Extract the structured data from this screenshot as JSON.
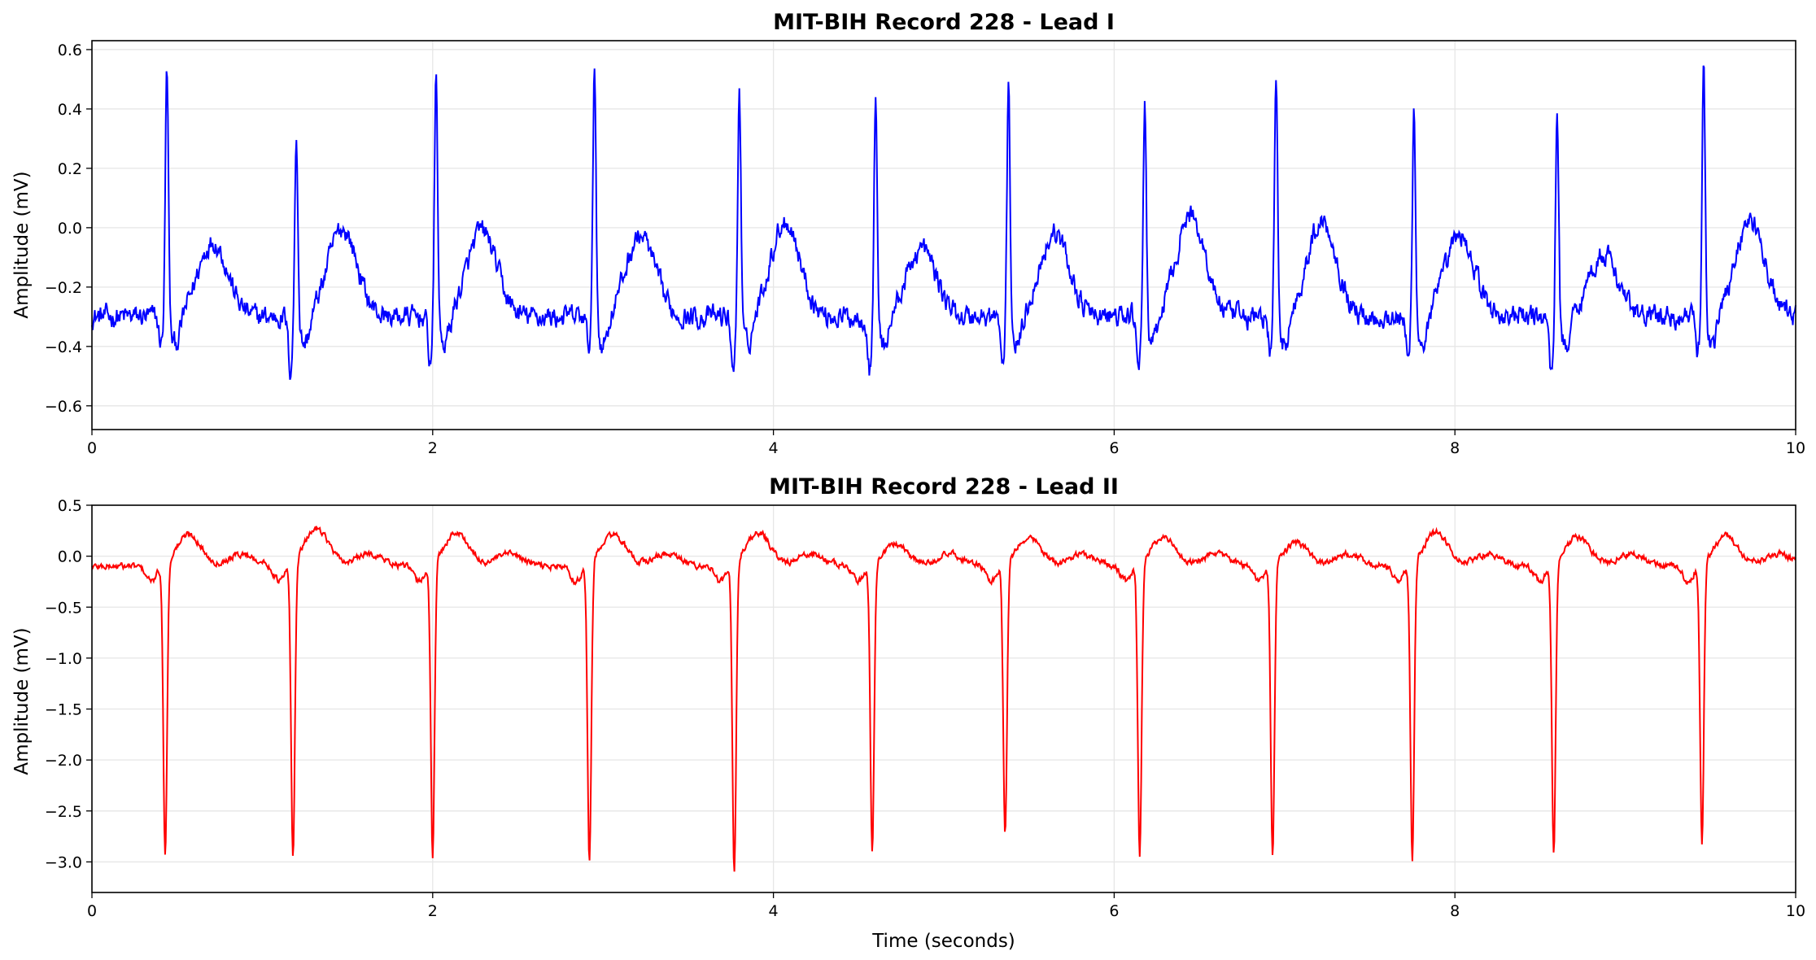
{
  "chart_data": [
    {
      "type": "line",
      "title": "MIT-BIH Record 228 - Lead I",
      "xlabel": "",
      "ylabel": "Amplitude (mV)",
      "xlim": [
        0,
        10
      ],
      "ylim": [
        -0.68,
        0.63
      ],
      "xticks": [
        0,
        2,
        4,
        6,
        8,
        10
      ],
      "xtick_labels": [
        "0",
        "2",
        "4",
        "6",
        "8",
        "10"
      ],
      "yticks": [
        -0.6,
        -0.4,
        -0.2,
        0.0,
        0.2,
        0.4,
        0.6
      ],
      "ytick_labels": [
        "−0.6",
        "−0.4",
        "−0.2",
        "0.0",
        "0.2",
        "0.4",
        "0.6"
      ],
      "grid": true,
      "color": "#0000ff",
      "peaks": [
        {
          "t": 0.44,
          "r": 0.56,
          "s": -0.45,
          "t_wave": 0.0
        },
        {
          "t": 1.2,
          "r": 0.33,
          "s": -0.6,
          "t_wave": 0.05
        },
        {
          "t": 2.02,
          "r": 0.54,
          "s": -0.55,
          "t_wave": 0.04
        },
        {
          "t": 2.95,
          "r": 0.56,
          "s": -0.45,
          "t_wave": 0.02
        },
        {
          "t": 3.8,
          "r": 0.5,
          "s": -0.6,
          "t_wave": 0.08
        },
        {
          "t": 4.6,
          "r": 0.47,
          "s": -0.6,
          "t_wave": -0.03
        },
        {
          "t": 5.38,
          "r": 0.48,
          "s": -0.57,
          "t_wave": 0.03
        },
        {
          "t": 6.18,
          "r": 0.43,
          "s": -0.55,
          "t_wave": 0.1
        },
        {
          "t": 6.95,
          "r": 0.53,
          "s": -0.5,
          "t_wave": 0.08
        },
        {
          "t": 7.76,
          "r": 0.42,
          "s": -0.55,
          "t_wave": 0.02
        },
        {
          "t": 8.6,
          "r": 0.42,
          "s": -0.62,
          "t_wave": -0.05
        },
        {
          "t": 9.46,
          "r": 0.57,
          "s": -0.5,
          "t_wave": 0.08
        }
      ],
      "baseline": -0.3
    },
    {
      "type": "line",
      "title": "MIT-BIH Record 228 - Lead II",
      "xlabel": "Time (seconds)",
      "ylabel": "Amplitude (mV)",
      "xlim": [
        0,
        10
      ],
      "ylim": [
        -3.3,
        0.5
      ],
      "xticks": [
        0,
        2,
        4,
        6,
        8,
        10
      ],
      "xtick_labels": [
        "0",
        "2",
        "4",
        "6",
        "8",
        "10"
      ],
      "yticks": [
        -3.0,
        -2.5,
        -2.0,
        -1.5,
        -1.0,
        -0.5,
        0.0,
        0.5
      ],
      "ytick_labels": [
        "−3.0",
        "−2.5",
        "−2.0",
        "−1.5",
        "−1.0",
        "−0.5",
        "0.0",
        "0.5"
      ],
      "grid": true,
      "color": "#ff0000",
      "peaks": [
        {
          "t": 0.43,
          "r": -2.95,
          "t_wave": 0.25
        },
        {
          "t": 1.18,
          "r": -3.02,
          "t_wave": 0.32
        },
        {
          "t": 2.0,
          "r": -2.98,
          "t_wave": 0.27
        },
        {
          "t": 2.92,
          "r": -3.03,
          "t_wave": 0.25
        },
        {
          "t": 3.77,
          "r": -3.13,
          "t_wave": 0.27
        },
        {
          "t": 4.58,
          "r": -2.93,
          "t_wave": 0.15
        },
        {
          "t": 5.36,
          "r": -2.78,
          "t_wave": 0.22
        },
        {
          "t": 6.15,
          "r": -2.95,
          "t_wave": 0.22
        },
        {
          "t": 6.93,
          "r": -2.98,
          "t_wave": 0.16
        },
        {
          "t": 7.75,
          "r": -3.02,
          "t_wave": 0.27
        },
        {
          "t": 8.58,
          "r": -2.93,
          "t_wave": 0.22
        },
        {
          "t": 9.45,
          "r": -2.85,
          "t_wave": 0.23
        }
      ],
      "baseline": -0.1
    }
  ]
}
